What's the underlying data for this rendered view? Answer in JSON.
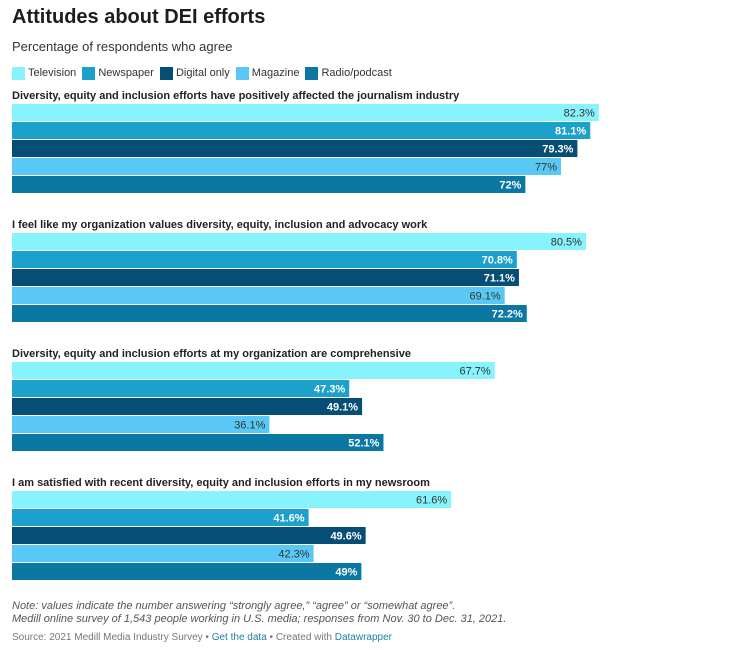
{
  "title": "Attitudes about DEI efforts",
  "subtitle": "Percentage of respondents who agree",
  "legend": [
    {
      "label": "Television",
      "color": "#87f3fd"
    },
    {
      "label": "Newspaper",
      "color": "#1ba1cb"
    },
    {
      "label": "Digital only",
      "color": "#074e76"
    },
    {
      "label": "Magazine",
      "color": "#5ac8f4"
    },
    {
      "label": "Radio/podcast",
      "color": "#0b77a3"
    }
  ],
  "chart_data": {
    "type": "bar",
    "orientation": "horizontal",
    "xlim": [
      0,
      100
    ],
    "value_suffix": "%",
    "series_names": [
      "Television",
      "Newspaper",
      "Digital only",
      "Magazine",
      "Radio/podcast"
    ],
    "colors": [
      "#87f3fd",
      "#1ba1cb",
      "#074e76",
      "#5ac8f4",
      "#0b77a3"
    ],
    "label_colors": [
      "#333333",
      "#ffffff",
      "#ffffff",
      "#333333",
      "#ffffff"
    ],
    "groups": [
      {
        "label": "Diversity, equity and inclusion efforts have positively affected the journalism industry",
        "values": [
          82.3,
          81.1,
          79.3,
          77,
          72
        ]
      },
      {
        "label": "I feel like my organization values diversity, equity, inclusion and advocacy work",
        "values": [
          80.5,
          70.8,
          71.1,
          69.1,
          72.2
        ]
      },
      {
        "label": "Diversity, equity and inclusion efforts at my organization are comprehensive",
        "values": [
          67.7,
          47.3,
          49.1,
          36.1,
          52.1
        ]
      },
      {
        "label": "I am satisfied with recent diversity, equity and inclusion efforts in my newsroom",
        "values": [
          61.6,
          41.6,
          49.6,
          42.3,
          49
        ]
      }
    ]
  },
  "notes": {
    "line1": "Note: values indicate the number answering “strongly agree,” “agree” or “somewhat agree”.",
    "line2": "Medill online survey of 1,543 people working in U.S. media; responses from Nov. 30 to Dec. 31, 2021."
  },
  "source": {
    "prefix": "Source: 2021 Medill Media Industry Survey •",
    "get_data": "Get the data",
    "middle": "• Created with",
    "datawrapper": "Datawrapper"
  }
}
